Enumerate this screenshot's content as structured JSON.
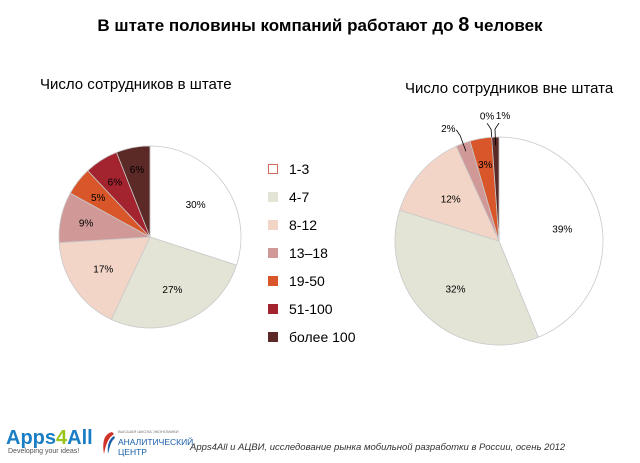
{
  "title": {
    "prefix": "В штате половины компаний работают до ",
    "number": "8",
    "suffix": " человек"
  },
  "legend": {
    "entries": [
      {
        "label": "1-3",
        "color": "#ffffff"
      },
      {
        "label": "4-7",
        "color": "#e3e4d5"
      },
      {
        "label": "8-12",
        "color": "#f3d5c8"
      },
      {
        "label": "13–18",
        "color": "#d09896"
      },
      {
        "label": "19-50",
        "color": "#d9562a"
      },
      {
        "label": "51-100",
        "color": "#a3242e"
      },
      {
        "label": "более 100",
        "color": "#5b2926"
      }
    ]
  },
  "chart_data": [
    {
      "type": "pie",
      "title": "Число сотрудников в штате",
      "categories": [
        "1-3",
        "4-7",
        "8-12",
        "13–18",
        "19-50",
        "51-100",
        "более 100"
      ],
      "values": [
        30,
        27,
        17,
        9,
        5,
        6,
        6
      ],
      "labels": [
        "30%",
        "27%",
        "17%",
        "9%",
        "5%",
        "6%",
        "6%"
      ]
    },
    {
      "type": "pie",
      "title": "Число сотрудников вне штата",
      "categories": [
        "1-3",
        "4-7",
        "8-12",
        "13–18",
        "19-50",
        "51-100",
        "более 100"
      ],
      "values": [
        39,
        32,
        12,
        2,
        3,
        0,
        1
      ],
      "labels": [
        "39%",
        "32%",
        "12%",
        "2%",
        "3%",
        "0%",
        "1%"
      ]
    }
  ],
  "footer": {
    "note": "Apps4All и АЦВИ, исследование рынка мобильной разработки в России, осень 2012",
    "logo1_a": "Apps",
    "logo1_b": "4",
    "logo1_c": "All",
    "logo1_tag": "Developing your ideas!",
    "logo2_small": "ВЫСШАЯ ШКОЛА ЭКОНОМИКИ",
    "logo2_line1": "АНАЛИТИЧЕСКИЙ",
    "logo2_line2": "ЦЕНТР"
  }
}
